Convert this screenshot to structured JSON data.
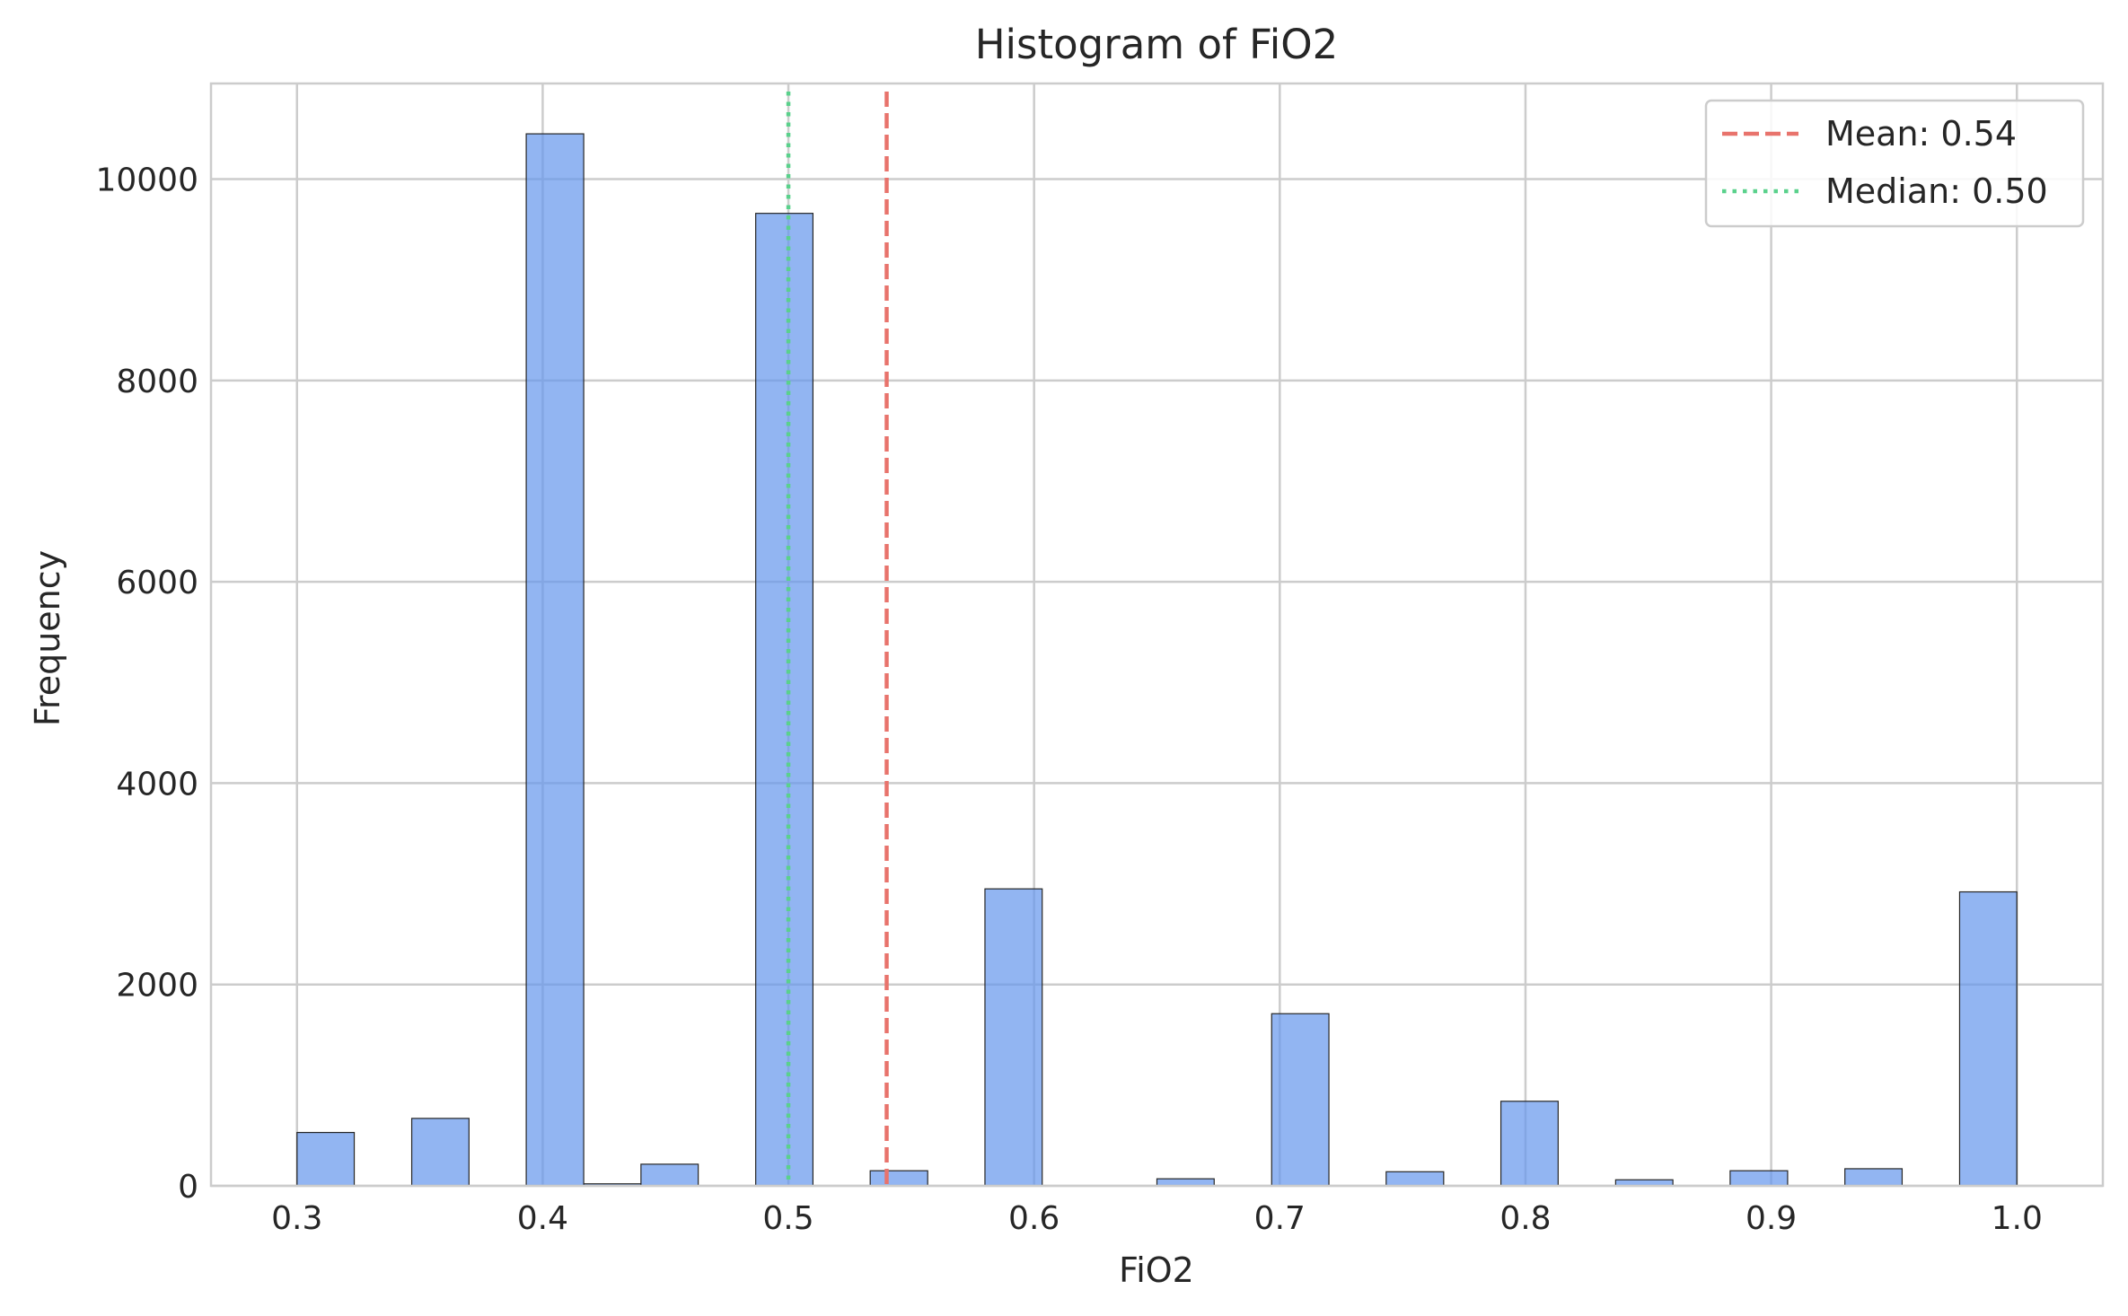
{
  "chart_data": {
    "type": "bar",
    "title": "Histogram of FiO2",
    "xlabel": "FiO2",
    "ylabel": "Frequency",
    "xlim": [
      0.265,
      1.035
    ],
    "ylim": [
      0,
      10950
    ],
    "xticks": [
      "0.3",
      "0.4",
      "0.5",
      "0.6",
      "0.7",
      "0.8",
      "0.9",
      "1.0"
    ],
    "xtick_values": [
      0.3,
      0.4,
      0.5,
      0.6,
      0.7,
      0.8,
      0.9,
      1.0
    ],
    "yticks": [
      "0",
      "2000",
      "4000",
      "6000",
      "8000",
      "10000"
    ],
    "ytick_values": [
      0,
      2000,
      4000,
      6000,
      8000,
      10000
    ],
    "grid": true,
    "bin_edges": [
      0.3,
      0.3233,
      0.3467,
      0.37,
      0.3933,
      0.4167,
      0.44,
      0.4633,
      0.4867,
      0.51,
      0.5333,
      0.5567,
      0.58,
      0.6033,
      0.6267,
      0.65,
      0.6733,
      0.6967,
      0.72,
      0.7433,
      0.7667,
      0.79,
      0.8133,
      0.8367,
      0.86,
      0.8833,
      0.9067,
      0.93,
      0.9533,
      0.9767,
      1.0
    ],
    "values": [
      530,
      0,
      670,
      0,
      10450,
      20,
      215,
      0,
      9660,
      0,
      150,
      0,
      2950,
      0,
      0,
      70,
      0,
      1710,
      0,
      140,
      0,
      840,
      0,
      60,
      0,
      150,
      0,
      170,
      0,
      2920
    ],
    "bar_color": "#6495ED",
    "edge_color": "#262626",
    "mean": 0.54,
    "median": 0.5,
    "mean_color": "#E8736C",
    "median_color": "#5AD18C",
    "legend_position": "top-right",
    "legend": [
      {
        "label": "Mean: 0.54",
        "style": "dashed",
        "color": "#E8736C"
      },
      {
        "label": "Median: 0.50",
        "style": "dotted",
        "color": "#5AD18C"
      }
    ]
  }
}
